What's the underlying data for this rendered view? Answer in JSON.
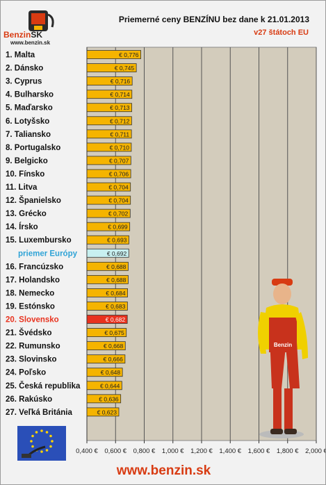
{
  "logo": {
    "brand": "Benzin",
    "brand_suffix": "SK",
    "url": "www.benzin.sk"
  },
  "footer": {
    "url": "www.benzin.sk"
  },
  "colors": {
    "bar_default": "#f5b400",
    "bar_average": "#c8f0f0",
    "bar_slovakia": "#e8321e",
    "plot_bg": "#d3ccbc",
    "accent": "#d83b12"
  },
  "chart_data": {
    "type": "bar",
    "orientation": "horizontal",
    "title": "Priemerné ceny BENZÍNU bez dane k 21.01.2013",
    "subtitle": "v27 štátoch EU",
    "categories": [
      "1. Malta",
      "2. Dánsko",
      "3. Cyprus",
      "4. Bulharsko",
      "5. Maďarsko",
      "6. Lotyšsko",
      "7. Taliansko",
      "8. Portugalsko",
      "9. Belgicko",
      "10. Fínsko",
      "11. Litva",
      "12. Španielsko",
      "13. Grécko",
      "14. Írsko",
      "15. Luxembursko",
      "priemer Európy",
      "16. Francúzsko",
      "17. Holandsko",
      "18. Nemecko",
      "19. Estónsko",
      "20. Slovensko",
      "21. Švédsko",
      "22. Rumunsko",
      "23. Slovinsko",
      "24. Poľsko",
      "25. Česká republika",
      "26. Rakúsko",
      "27. Veľká Británia"
    ],
    "values": [
      0.776,
      0.745,
      0.716,
      0.714,
      0.713,
      0.712,
      0.711,
      0.71,
      0.707,
      0.706,
      0.704,
      0.704,
      0.702,
      0.699,
      0.693,
      0.692,
      0.688,
      0.688,
      0.684,
      0.683,
      0.682,
      0.675,
      0.668,
      0.666,
      0.648,
      0.644,
      0.636,
      0.623
    ],
    "value_labels": [
      "€ 0,776",
      "€ 0,745",
      "€ 0,716",
      "€ 0,714",
      "€ 0,713",
      "€ 0,712",
      "€ 0,711",
      "€ 0,710",
      "€ 0,707",
      "€ 0,706",
      "€ 0,704",
      "€ 0,704",
      "€ 0,702",
      "€ 0,699",
      "€ 0,693",
      "€ 0,692",
      "€ 0,688",
      "€ 0,688",
      "€ 0,684",
      "€ 0,683",
      "€ 0,682",
      "€ 0,675",
      "€ 0,668",
      "€ 0,666",
      "€ 0,648",
      "€ 0,644",
      "€ 0,636",
      "€ 0,623"
    ],
    "highlight": {
      "average_index": 15,
      "slovakia_index": 20
    },
    "xlim": [
      0.4,
      2.0
    ],
    "xticks": [
      0.4,
      0.6,
      0.8,
      1.0,
      1.2,
      1.4,
      1.6,
      1.8,
      2.0
    ],
    "xtick_labels": [
      "0,400 €",
      "0,600 €",
      "0,800 €",
      "1,000 €",
      "1,200 €",
      "1,400 €",
      "1,600 €",
      "1,800 €",
      "2,000 €"
    ],
    "grid": true
  }
}
